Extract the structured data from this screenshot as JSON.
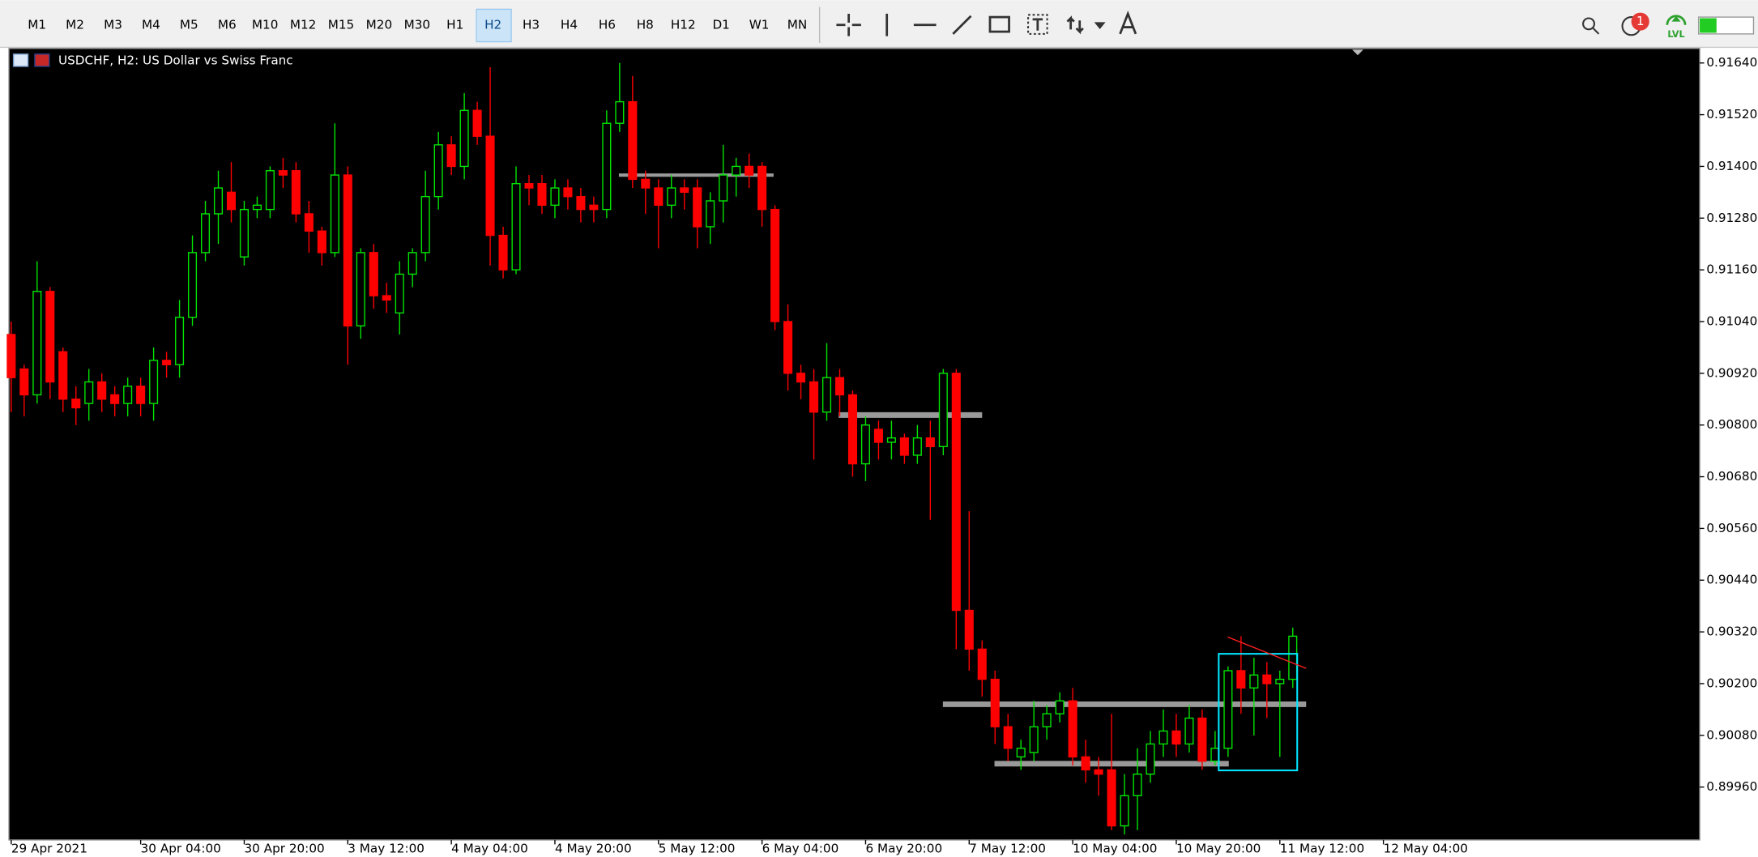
{
  "toolbar": {
    "timeframes": [
      "M1",
      "M2",
      "M3",
      "M4",
      "M5",
      "M6",
      "M10",
      "M12",
      "M15",
      "M20",
      "M30",
      "H1",
      "H2",
      "H3",
      "H4",
      "H6",
      "H8",
      "H12",
      "D1",
      "W1",
      "MN"
    ],
    "active": "H2",
    "notifications": "1",
    "badge_label": "LVL"
  },
  "chart_data": {
    "type": "candlestick",
    "title": "USDCHF, H2:  US Dollar vs Swiss Franc",
    "open": [
      0.9101,
      0.9093,
      0.9087,
      0.9111,
      0.9097,
      0.9086,
      0.9085,
      0.909,
      0.9087,
      0.9085,
      0.9089,
      0.9085,
      0.9095,
      0.9094,
      0.9105,
      0.912,
      0.9129,
      0.9134,
      0.9119,
      0.913,
      0.913,
      0.9139,
      0.9139,
      0.9129,
      0.9125,
      0.912,
      0.9138,
      0.9103,
      0.912,
      0.911,
      0.9106,
      0.9115,
      0.912,
      0.9133,
      0.9145,
      0.914,
      0.9153,
      0.9147,
      0.9124,
      0.9116,
      0.9136,
      0.9136,
      0.9131,
      0.9135,
      0.9133,
      0.9131,
      0.913,
      0.915,
      0.9155,
      0.9137,
      0.9135,
      0.9131,
      0.9135,
      0.9135,
      0.9126,
      0.9132,
      0.9138,
      0.914,
      0.914,
      0.913,
      0.9104,
      0.9092,
      0.909,
      0.9083,
      0.9091,
      0.9087,
      0.9071,
      0.9079,
      0.9076,
      0.9077,
      0.9073,
      0.9077,
      0.9075,
      0.9092,
      0.9037,
      0.9028,
      0.9021,
      0.901,
      0.9003,
      0.9004,
      0.901,
      0.9013,
      0.9016,
      0.9003,
      0.9,
      0.9,
      0.8987,
      0.8994,
      0.8999,
      0.9006,
      0.9009,
      0.9006,
      0.9012,
      0.9002,
      0.9005,
      0.9023,
      0.9019,
      0.9022,
      0.902,
      0.9021
    ],
    "high": [
      0.9104,
      0.9094,
      0.9118,
      0.9112,
      0.9098,
      0.9089,
      0.9093,
      0.9092,
      0.9089,
      0.9091,
      0.9091,
      0.9098,
      0.9097,
      0.9109,
      0.9124,
      0.9132,
      0.9139,
      0.9141,
      0.9132,
      0.9133,
      0.914,
      0.9142,
      0.9141,
      0.9132,
      0.9126,
      0.915,
      0.914,
      0.9121,
      0.9122,
      0.9113,
      0.9118,
      0.9121,
      0.9139,
      0.9148,
      0.9147,
      0.9157,
      0.9155,
      0.9163,
      0.9126,
      0.914,
      0.9138,
      0.9138,
      0.9137,
      0.9137,
      0.9135,
      0.9133,
      0.9153,
      0.9164,
      0.9161,
      0.9139,
      0.9137,
      0.9138,
      0.9137,
      0.9137,
      0.9134,
      0.9145,
      0.9142,
      0.9143,
      0.9141,
      0.9131,
      0.9108,
      0.9094,
      0.9093,
      0.9099,
      0.9093,
      0.9088,
      0.9082,
      0.9081,
      0.9081,
      0.9078,
      0.908,
      0.9081,
      0.9093,
      0.9093,
      0.906,
      0.903,
      0.9023,
      0.9013,
      0.9007,
      0.9016,
      0.9015,
      0.9018,
      0.9019,
      0.9007,
      0.9003,
      0.9013,
      0.8999,
      0.9005,
      0.9009,
      0.9014,
      0.9013,
      0.9015,
      0.9014,
      0.9009,
      0.9024,
      0.9031,
      0.9026,
      0.9025,
      0.9023,
      0.9033
    ],
    "low": [
      0.9083,
      0.9082,
      0.9085,
      0.9086,
      0.9083,
      0.908,
      0.9081,
      0.9083,
      0.9082,
      0.9082,
      0.9082,
      0.9081,
      0.9091,
      0.9091,
      0.9103,
      0.9118,
      0.9122,
      0.9127,
      0.9117,
      0.9128,
      0.9128,
      0.9135,
      0.9127,
      0.912,
      0.9117,
      0.9119,
      0.9094,
      0.91,
      0.9107,
      0.9106,
      0.9101,
      0.9112,
      0.9118,
      0.913,
      0.9138,
      0.9137,
      0.9145,
      0.9117,
      0.9114,
      0.9115,
      0.9131,
      0.9129,
      0.9128,
      0.913,
      0.9127,
      0.9127,
      0.9128,
      0.9148,
      0.9135,
      0.9129,
      0.9121,
      0.9128,
      0.913,
      0.9121,
      0.9122,
      0.9127,
      0.9133,
      0.9135,
      0.9126,
      0.9102,
      0.9088,
      0.9086,
      0.9072,
      0.9081,
      0.9082,
      0.9068,
      0.9067,
      0.9072,
      0.9072,
      0.9071,
      0.9071,
      0.9058,
      0.9073,
      0.9028,
      0.9023,
      0.9017,
      0.9006,
      0.9002,
      0.9,
      0.9002,
      0.9007,
      0.9011,
      0.9001,
      0.8997,
      0.8994,
      0.8986,
      0.8985,
      0.8986,
      0.8997,
      0.9003,
      0.9003,
      0.9004,
      0.9,
      0.9001,
      0.9003,
      0.9013,
      0.9008,
      0.9012,
      0.9003,
      0.9019
    ],
    "close": [
      0.9091,
      0.9087,
      0.9111,
      0.909,
      0.9086,
      0.9084,
      0.909,
      0.9086,
      0.9085,
      0.9089,
      0.9085,
      0.9095,
      0.9094,
      0.9105,
      0.912,
      0.9129,
      0.9135,
      0.913,
      0.913,
      0.9131,
      0.9139,
      0.9138,
      0.9129,
      0.9125,
      0.912,
      0.9138,
      0.9103,
      0.912,
      0.911,
      0.9109,
      0.9115,
      0.912,
      0.9133,
      0.9145,
      0.914,
      0.9153,
      0.9147,
      0.9124,
      0.9116,
      0.9136,
      0.9135,
      0.9131,
      0.9135,
      0.9133,
      0.913,
      0.913,
      0.915,
      0.9155,
      0.9137,
      0.9135,
      0.9131,
      0.9135,
      0.9134,
      0.9126,
      0.9132,
      0.9138,
      0.914,
      0.9138,
      0.913,
      0.9104,
      0.9092,
      0.909,
      0.9083,
      0.9091,
      0.9087,
      0.9071,
      0.908,
      0.9076,
      0.9077,
      0.9073,
      0.9077,
      0.9075,
      0.9092,
      0.9037,
      0.9028,
      0.9021,
      0.901,
      0.9005,
      0.9005,
      0.901,
      0.9013,
      0.9016,
      0.9003,
      0.9,
      0.8999,
      0.8987,
      0.8994,
      0.8999,
      0.9006,
      0.9009,
      0.9006,
      0.9012,
      0.9002,
      0.9005,
      0.9023,
      0.9019,
      0.9022,
      0.902,
      0.9021,
      0.9031
    ],
    "up_color": "#00e600",
    "down_color": "#ff0000",
    "xlim": [
      0,
      130
    ],
    "xticks": [
      {
        "value": 0,
        "label": "29 Apr 2021"
      },
      {
        "value": 10,
        "label": "30 Apr 04:00"
      },
      {
        "value": 18,
        "label": "30 Apr 20:00"
      },
      {
        "value": 26,
        "label": "3 May 12:00"
      },
      {
        "value": 34,
        "label": "4 May 04:00"
      },
      {
        "value": 42,
        "label": "4 May 20:00"
      },
      {
        "value": 50,
        "label": "5 May 12:00"
      },
      {
        "value": 58,
        "label": "6 May 04:00"
      },
      {
        "value": 66,
        "label": "6 May 20:00"
      },
      {
        "value": 74,
        "label": "7 May 12:00"
      },
      {
        "value": 82,
        "label": "10 May 04:00"
      },
      {
        "value": 90,
        "label": "10 May 20:00"
      },
      {
        "value": 98,
        "label": "11 May 12:00"
      },
      {
        "value": 106,
        "label": "12 May 04:00"
      }
    ],
    "ylim": [
      0.8984,
      0.91671
    ],
    "yticks": [
      {
        "value": 0.9164,
        "label": "0.91640"
      },
      {
        "value": 0.9152,
        "label": "0.91520"
      },
      {
        "value": 0.914,
        "label": "0.91400"
      },
      {
        "value": 0.9128,
        "label": "0.91280"
      },
      {
        "value": 0.9116,
        "label": "0.91160"
      },
      {
        "value": 0.9104,
        "label": "0.91040"
      },
      {
        "value": 0.9092,
        "label": "0.90920"
      },
      {
        "value": 0.908,
        "label": "0.90800"
      },
      {
        "value": 0.9068,
        "label": "0.90680"
      },
      {
        "value": 0.9056,
        "label": "0.90560"
      },
      {
        "value": 0.9044,
        "label": "0.90440"
      },
      {
        "value": 0.9032,
        "label": "0.90320"
      },
      {
        "value": 0.902,
        "label": "0.90200"
      },
      {
        "value": 0.9008,
        "label": "0.90080"
      },
      {
        "value": 0.8996,
        "label": "0.89960"
      }
    ]
  }
}
